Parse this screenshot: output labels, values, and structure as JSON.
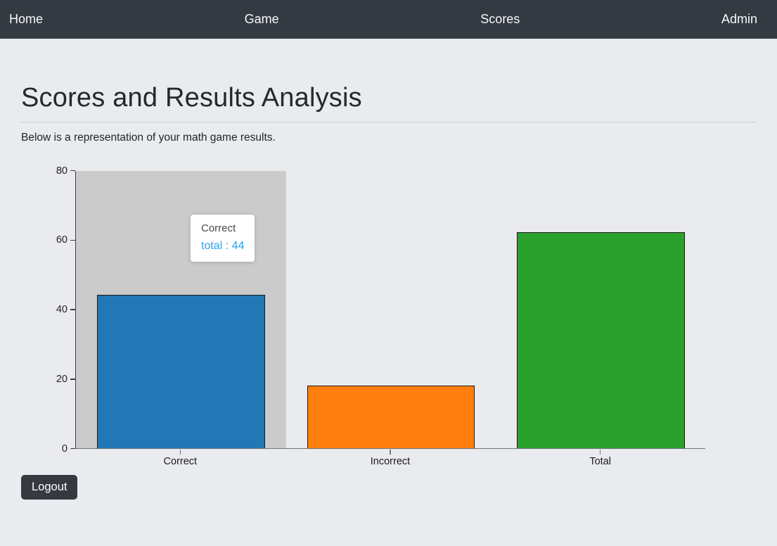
{
  "navbar": {
    "bg_color": "#333a42",
    "items": [
      {
        "label": "Home"
      },
      {
        "label": "Game"
      },
      {
        "label": "Scores"
      },
      {
        "label": "Admin"
      }
    ]
  },
  "page": {
    "title": "Scores and Results Analysis",
    "subtitle": "Below is a representation of your math game results.",
    "background_color": "#e9ebef"
  },
  "chart_data": {
    "type": "bar",
    "title": "",
    "xlabel": "",
    "ylabel": "",
    "categories": [
      "Correct",
      "Incorrect",
      "Total"
    ],
    "values": [
      44,
      18,
      62
    ],
    "bar_colors": [
      "#2377b4",
      "#ff7f0e",
      "#2ca02c"
    ],
    "bar_border_color": "#1a1a1a",
    "ylim": [
      0,
      80
    ],
    "yticks": [
      0,
      20,
      40,
      60,
      80
    ],
    "grid": false,
    "legend": false,
    "bar_width_fraction": 0.8,
    "hover": {
      "highlighted_category": "Correct",
      "band_color": "#cbcbcb",
      "tooltip": {
        "title": "Correct",
        "line": "total : 44",
        "value_color": "#2ba0ea"
      }
    }
  },
  "actions": {
    "logout_label": "Logout",
    "logout_bg": "#343a40"
  }
}
